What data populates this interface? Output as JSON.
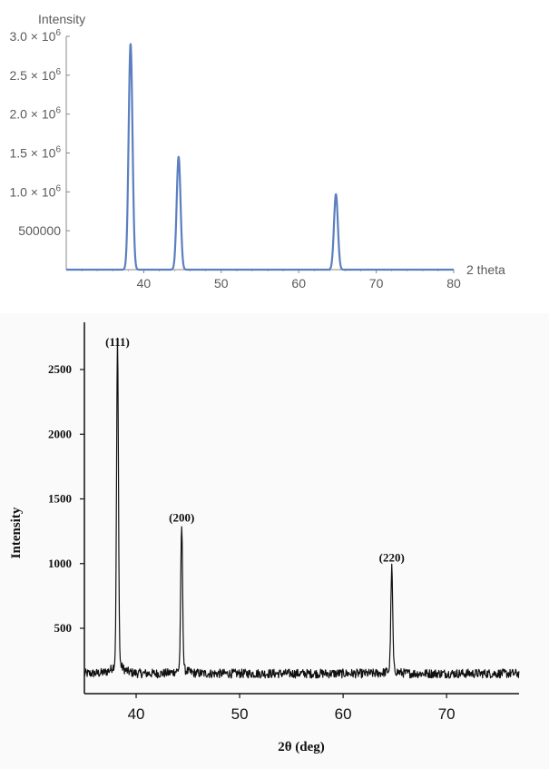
{
  "chart_data": [
    {
      "type": "line",
      "title": "",
      "xlabel": "2 theta",
      "ylabel": "Intensity",
      "xlim": [
        30,
        80
      ],
      "ylim": [
        0,
        3000000
      ],
      "x_ticks": [
        40,
        50,
        60,
        70,
        80
      ],
      "x_tick_labels": [
        "40",
        "50",
        "60",
        "70",
        "80"
      ],
      "y_ticks": [
        500000,
        1000000,
        1500000,
        2000000,
        2500000,
        3000000
      ],
      "y_tick_labels": [
        {
          "text": "500000",
          "mantissa": "500000",
          "exponent": ""
        },
        {
          "text": "1.0 × 10^6",
          "mantissa": "1.0 × 10",
          "exponent": "6"
        },
        {
          "text": "1.5 × 10^6",
          "mantissa": "1.5 × 10",
          "exponent": "6"
        },
        {
          "text": "2.0 × 10^6",
          "mantissa": "2.0 × 10",
          "exponent": "6"
        },
        {
          "text": "2.5 × 10^6",
          "mantissa": "2.5 × 10",
          "exponent": "6"
        },
        {
          "text": "3.0 × 10^6",
          "mantissa": "3.0 × 10",
          "exponent": "6"
        }
      ],
      "series": [
        {
          "color": "#5b7fbf",
          "peaks": [
            {
              "x": 38.3,
              "y": 2900000,
              "width": 0.25
            },
            {
              "x": 44.5,
              "y": 1450000,
              "width": 0.25
            },
            {
              "x": 64.8,
              "y": 970000,
              "width": 0.25
            }
          ]
        }
      ],
      "grid": false
    },
    {
      "type": "line",
      "title": "",
      "xlabel": "2θ (deg)",
      "ylabel": "Intensity",
      "xlim": [
        35,
        77
      ],
      "ylim": [
        0,
        2700
      ],
      "x_ticks": [
        40,
        50,
        60,
        70
      ],
      "x_tick_labels": [
        "40",
        "50",
        "60",
        "70"
      ],
      "y_ticks": [
        500,
        1000,
        1500,
        2000,
        2500
      ],
      "y_tick_labels": [
        "500",
        "1000",
        "1500",
        "2000",
        "2500"
      ],
      "baseline": 150,
      "series": [
        {
          "color": "#111111",
          "peaks": [
            {
              "x": 38.2,
              "y": 2600
            },
            {
              "x": 44.4,
              "y": 1240
            },
            {
              "x": 64.7,
              "y": 930
            }
          ]
        }
      ],
      "annotations": [
        {
          "text": "(111)",
          "x": 38.2,
          "y": 2600
        },
        {
          "text": "(200)",
          "x": 44.4,
          "y": 1240
        },
        {
          "text": "(220)",
          "x": 64.7,
          "y": 930
        }
      ],
      "grid": false
    }
  ]
}
